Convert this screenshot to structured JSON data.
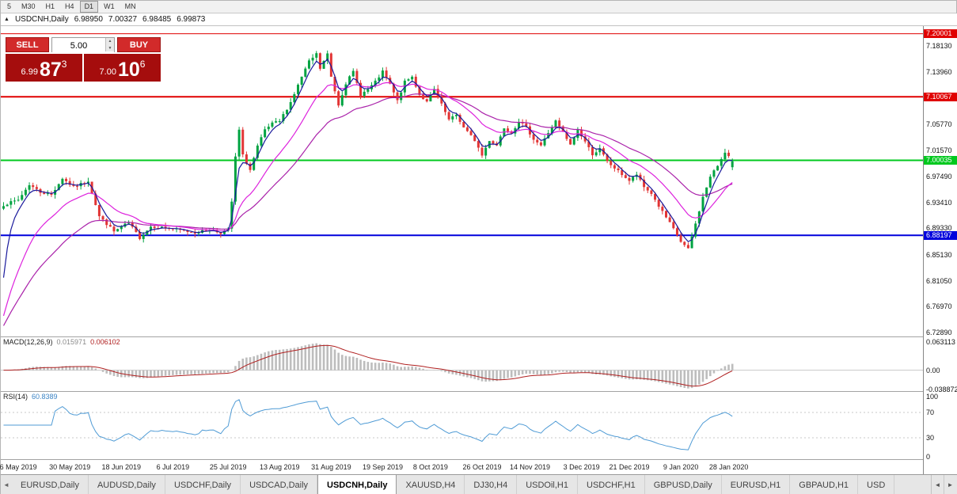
{
  "toolbar": {
    "timeframes": [
      "5",
      "M30",
      "H1",
      "H4",
      "D1",
      "W1",
      "MN"
    ],
    "active": "D1"
  },
  "chart": {
    "collapse_icon": "▲",
    "title": "USDCNH,Daily",
    "quote": {
      "open": "6.98950",
      "high": "7.00327",
      "low": "6.98485",
      "close": "6.99873"
    }
  },
  "trade_panel": {
    "sell_label": "SELL",
    "buy_label": "BUY",
    "volume": "5.00",
    "sell_price": {
      "prefix": "6.99",
      "big": "87",
      "sup": "3"
    },
    "buy_price": {
      "prefix": "7.00",
      "big": "10",
      "sup": "6"
    }
  },
  "indicators": {
    "macd": {
      "label": "MACD(12,26,9)",
      "value1": "0.015971",
      "value2": "0.006102",
      "axis": [
        "0.063113",
        "0.00",
        "-0.038872"
      ]
    },
    "rsi": {
      "label": "RSI(14)",
      "value": "60.8389",
      "axis": [
        "100",
        "70",
        "30",
        "0"
      ],
      "dashed_levels": [
        70,
        30
      ]
    }
  },
  "chart_data": {
    "type": "candlestick",
    "symbol": "USDCNH",
    "timeframe": "Daily",
    "last_quote": {
      "open": 6.9895,
      "high": 7.00327,
      "low": 6.98485,
      "close": 6.99873
    },
    "price_range": [
      6.7225,
      7.212
    ],
    "candle_count": 199,
    "y_ticks": [
      "7.18130",
      "7.13960",
      "7.05770",
      "7.01570",
      "6.97490",
      "6.93410",
      "6.89330",
      "6.85130",
      "6.81050",
      "6.76970",
      "6.72890"
    ],
    "levels": [
      {
        "price": 7.20001,
        "label": "7.20001",
        "color": "#e00000",
        "lw": 1
      },
      {
        "price": 7.10067,
        "label": "7.10067",
        "color": "#e00000",
        "lw": 2
      },
      {
        "price": 7.00035,
        "label": "7.00035",
        "color": "#00c81e",
        "lw": 2
      },
      {
        "price": 6.88197,
        "label": "6.88197",
        "color": "#0000dc",
        "lw": 2
      }
    ],
    "x_labels": [
      {
        "label": "6 May 2019",
        "index": 4
      },
      {
        "label": "30 May 2019",
        "index": 18
      },
      {
        "label": "18 Jun 2019",
        "index": 32
      },
      {
        "label": "6 Jul 2019",
        "index": 46
      },
      {
        "label": "25 Jul 2019",
        "index": 61
      },
      {
        "label": "13 Aug 2019",
        "index": 75
      },
      {
        "label": "31 Aug 2019",
        "index": 89
      },
      {
        "label": "19 Sep 2019",
        "index": 103
      },
      {
        "label": "8 Oct 2019",
        "index": 116
      },
      {
        "label": "26 Oct 2019",
        "index": 130
      },
      {
        "label": "14 Nov 2019",
        "index": 143
      },
      {
        "label": "3 Dec 2019",
        "index": 157
      },
      {
        "label": "21 Dec 2019",
        "index": 170
      },
      {
        "label": "9 Jan 2020",
        "index": 184
      },
      {
        "label": "28 Jan 2020",
        "index": 197
      }
    ],
    "close_keyframes": [
      [
        0,
        6.93
      ],
      [
        4,
        6.938
      ],
      [
        7,
        6.962
      ],
      [
        10,
        6.95
      ],
      [
        13,
        6.946
      ],
      [
        16,
        6.972
      ],
      [
        19,
        6.958
      ],
      [
        21,
        6.963
      ],
      [
        23,
        6.968
      ],
      [
        26,
        6.912
      ],
      [
        30,
        6.888
      ],
      [
        34,
        6.902
      ],
      [
        37,
        6.878
      ],
      [
        40,
        6.896
      ],
      [
        44,
        6.894
      ],
      [
        48,
        6.89
      ],
      [
        52,
        6.886
      ],
      [
        56,
        6.891
      ],
      [
        59,
        6.886
      ],
      [
        61,
        6.891
      ],
      [
        62,
        6.935
      ],
      [
        63,
        7.005
      ],
      [
        64,
        7.048
      ],
      [
        65,
        7.008
      ],
      [
        67,
        6.985
      ],
      [
        69,
        7.022
      ],
      [
        71,
        7.048
      ],
      [
        73,
        7.058
      ],
      [
        75,
        7.062
      ],
      [
        78,
        7.092
      ],
      [
        81,
        7.132
      ],
      [
        83,
        7.156
      ],
      [
        85,
        7.168
      ],
      [
        86,
        7.145
      ],
      [
        88,
        7.168
      ],
      [
        89,
        7.132
      ],
      [
        91,
        7.088
      ],
      [
        93,
        7.122
      ],
      [
        95,
        7.14
      ],
      [
        97,
        7.104
      ],
      [
        99,
        7.112
      ],
      [
        101,
        7.124
      ],
      [
        103,
        7.14
      ],
      [
        105,
        7.12
      ],
      [
        107,
        7.094
      ],
      [
        109,
        7.124
      ],
      [
        111,
        7.132
      ],
      [
        113,
        7.104
      ],
      [
        115,
        7.092
      ],
      [
        117,
        7.112
      ],
      [
        119,
        7.088
      ],
      [
        121,
        7.064
      ],
      [
        123,
        7.072
      ],
      [
        125,
        7.052
      ],
      [
        128,
        7.032
      ],
      [
        130,
        7.008
      ],
      [
        132,
        7.032
      ],
      [
        134,
        7.024
      ],
      [
        136,
        7.052
      ],
      [
        138,
        7.044
      ],
      [
        140,
        7.062
      ],
      [
        142,
        7.052
      ],
      [
        144,
        7.034
      ],
      [
        146,
        7.024
      ],
      [
        148,
        7.044
      ],
      [
        150,
        7.062
      ],
      [
        152,
        7.044
      ],
      [
        154,
        7.024
      ],
      [
        156,
        7.048
      ],
      [
        158,
        7.03
      ],
      [
        160,
        7.01
      ],
      [
        162,
        7.018
      ],
      [
        164,
        6.998
      ],
      [
        166,
        6.988
      ],
      [
        168,
        6.978
      ],
      [
        170,
        6.968
      ],
      [
        172,
        6.978
      ],
      [
        174,
        6.958
      ],
      [
        176,
        6.948
      ],
      [
        178,
        6.928
      ],
      [
        180,
        6.91
      ],
      [
        182,
        6.892
      ],
      [
        184,
        6.872
      ],
      [
        186,
        6.86
      ],
      [
        188,
        6.9
      ],
      [
        190,
        6.942
      ],
      [
        192,
        6.974
      ],
      [
        194,
        6.992
      ],
      [
        196,
        7.014
      ],
      [
        198,
        6.9987
      ]
    ],
    "noise": {
      "seed": 7,
      "jitter": 0.004,
      "wick": 0.0065
    },
    "colors": {
      "up": "#00a341",
      "down": "#e23535",
      "macd_hist": "#bdbdbd",
      "macd_signal": "#b02020",
      "macd_zero": "#c8c8c8",
      "rsi_line": "#4f9bd5",
      "rsi_dash": "#c8c8c8"
    },
    "emas": [
      {
        "period": 34,
        "color": "#aa22aa",
        "seed": 6.728
      },
      {
        "period": 16,
        "color": "#dd22dd",
        "seed": 6.732
      },
      {
        "period": 4,
        "color": "#1a1a9c",
        "seed": 6.74
      }
    ],
    "macd_range": [
      -0.0389,
      0.0631
    ],
    "rsi_range": [
      0,
      100
    ]
  },
  "tabbar": {
    "tabs": [
      "EURUSD,Daily",
      "AUDUSD,Daily",
      "USDCHF,Daily",
      "USDCAD,Daily",
      "USDCNH,Daily",
      "XAUUSD,H4",
      "DJ30,H4",
      "USDOil,H1",
      "USDCHF,H1",
      "GBPUSD,Daily",
      "EURUSD,H1",
      "GBPAUD,H1",
      "USD"
    ],
    "active": "USDCNH,Daily",
    "left_arrow": "◄",
    "scroll_left": "◄",
    "scroll_right": "►"
  }
}
